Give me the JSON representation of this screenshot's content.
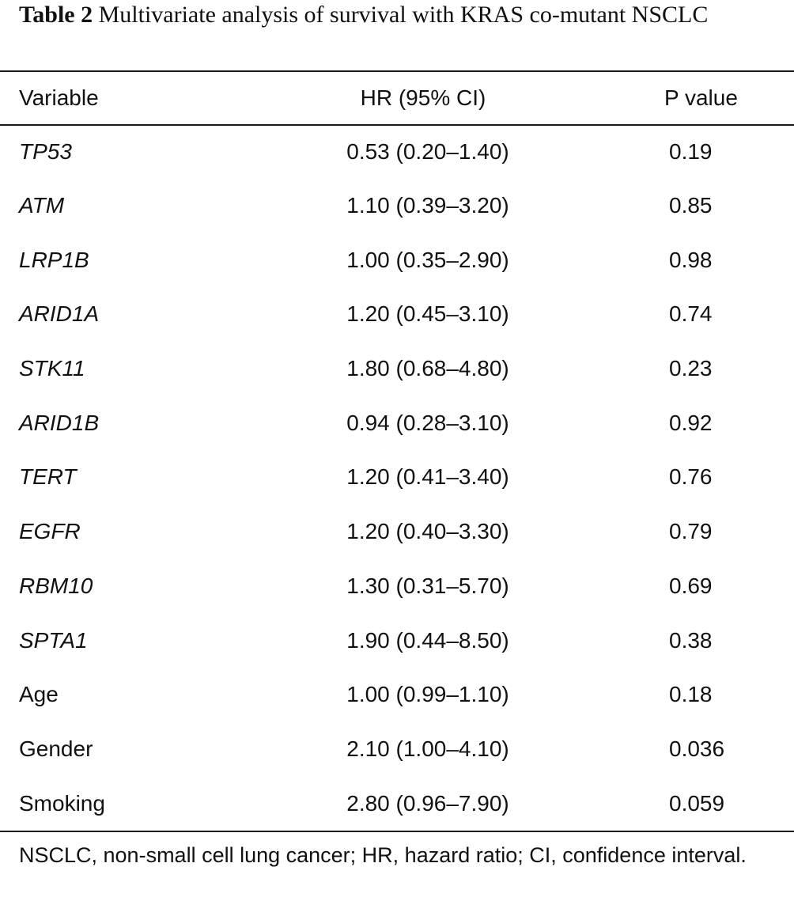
{
  "caption": {
    "label": "Table 2",
    "text": "Multivariate analysis of survival with KRAS co-mutant NSCLC"
  },
  "table": {
    "headers": {
      "variable": "Variable",
      "hr": "HR (95% CI)",
      "p": "P value"
    },
    "rows": [
      {
        "variable": "TP53",
        "italic": true,
        "hr": "0.53 (0.20–1.40)",
        "p": "0.19"
      },
      {
        "variable": "ATM",
        "italic": true,
        "hr": "1.10 (0.39–3.20)",
        "p": "0.85"
      },
      {
        "variable": "LRP1B",
        "italic": true,
        "hr": "1.00 (0.35–2.90)",
        "p": "0.98"
      },
      {
        "variable": "ARID1A",
        "italic": true,
        "hr": "1.20 (0.45–3.10)",
        "p": "0.74"
      },
      {
        "variable": "STK11",
        "italic": true,
        "hr": "1.80 (0.68–4.80)",
        "p": "0.23"
      },
      {
        "variable": "ARID1B",
        "italic": true,
        "hr": "0.94 (0.28–3.10)",
        "p": "0.92"
      },
      {
        "variable": "TERT",
        "italic": true,
        "hr": "1.20 (0.41–3.40)",
        "p": "0.76"
      },
      {
        "variable": "EGFR",
        "italic": true,
        "hr": "1.20 (0.40–3.30)",
        "p": "0.79"
      },
      {
        "variable": "RBM10",
        "italic": true,
        "hr": "1.30 (0.31–5.70)",
        "p": "0.69"
      },
      {
        "variable": "SPTA1",
        "italic": true,
        "hr": "1.90 (0.44–8.50)",
        "p": "0.38"
      },
      {
        "variable": "Age",
        "italic": false,
        "hr": "1.00 (0.99–1.10)",
        "p": "0.18"
      },
      {
        "variable": "Gender",
        "italic": false,
        "hr": "2.10 (1.00–4.10)",
        "p": "0.036"
      },
      {
        "variable": "Smoking",
        "italic": false,
        "hr": "2.80 (0.96–7.90)",
        "p": "0.059"
      }
    ]
  },
  "footnote": "NSCLC, non-small cell lung cancer; HR, hazard ratio; CI, confidence interval."
}
